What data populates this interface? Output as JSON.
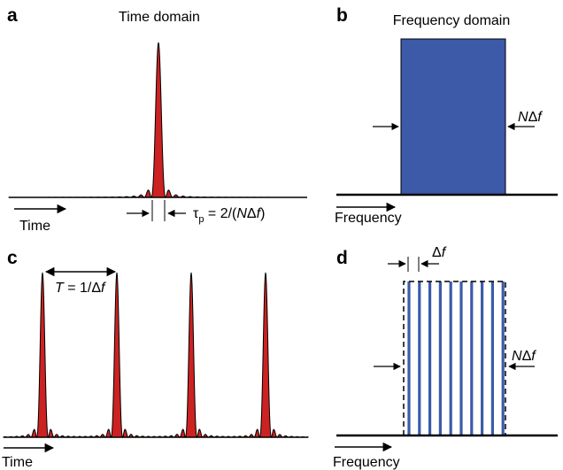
{
  "panels": {
    "a": {
      "label": "a",
      "title": "Time domain",
      "axis_label": "Time"
    },
    "b": {
      "label": "b",
      "title": "Frequency domain",
      "axis_label": "Frequency"
    },
    "c": {
      "label": "c",
      "axis_label": "Time"
    },
    "d": {
      "label": "d",
      "axis_label": "Frequency"
    }
  },
  "annotations": {
    "tau_symbol": "τ",
    "tau_sub": "p",
    "tau_rest_1": " = 2/(",
    "tau_N": "N",
    "tau_delta": "Δ",
    "tau_f": "f",
    "tau_close": ")",
    "bandwidth_N": "N",
    "bandwidth_delta": "Δ",
    "bandwidth_f": "f",
    "period_T": "T",
    "period_rest": " = 1/Δ",
    "period_f": "f",
    "spacing_delta": "Δ",
    "spacing_f": "f"
  },
  "colors": {
    "pulse_fill": "#cc2222",
    "spectrum_fill": "#3c5aa8",
    "comb_line": "#3c5aa8",
    "axis": "#000000"
  },
  "comb": {
    "line_count": 10
  },
  "pulse_train": {
    "pulse_count": 4
  }
}
